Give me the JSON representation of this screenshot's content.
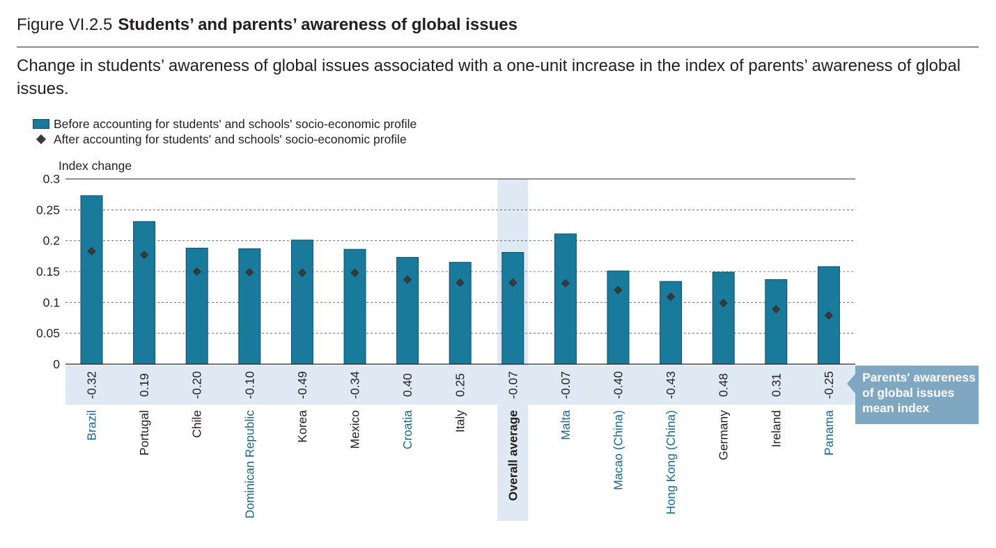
{
  "header": {
    "figure_number": "Figure VI.2.5",
    "figure_title": "Students’ and parents’ awareness of global issues",
    "subtitle": "Change in students’ awareness of global issues associated with a one-unit increase in the index of parents’ awareness of global issues."
  },
  "legend": {
    "bar_label": "Before accounting for students' and schools' socio-economic profile",
    "marker_label": "After accounting for students' and schools' socio-economic profile"
  },
  "callout": {
    "line1": "Parents' awareness",
    "line2": "of global issues",
    "line3": "mean index"
  },
  "colors": {
    "bar": "#1a7a9c",
    "bar_edge": "#0f4c62",
    "marker": "#3a3a3a",
    "band": "#dfe9f4",
    "highlight_label": "#1a6a8c",
    "callout": "#7fa7c1"
  },
  "chart_data": {
    "type": "bar",
    "ylabel": "Index change",
    "ylim": [
      0,
      0.3
    ],
    "yticks": [
      {
        "value": 0,
        "label": "0"
      },
      {
        "value": 0.05,
        "label": "0.05"
      },
      {
        "value": 0.1,
        "label": "0.1"
      },
      {
        "value": 0.15,
        "label": "0.15"
      },
      {
        "value": 0.2,
        "label": "0.2"
      },
      {
        "value": 0.25,
        "label": "0.25"
      },
      {
        "value": 0.3,
        "label": "0.3"
      }
    ],
    "grid": "dashed-horizontal",
    "categories": [
      "Brazil",
      "Portugal",
      "Chile",
      "Dominican Republic",
      "Korea",
      "Mexico",
      "Croatia",
      "Italy",
      "Overall average",
      "Malta",
      "Macao (China)",
      "Hong Kong (China)",
      "Germany",
      "Ireland",
      "Panama"
    ],
    "highlighted_categories": [
      "Brazil",
      "Dominican Republic",
      "Croatia",
      "Malta",
      "Macao (China)",
      "Hong Kong (China)",
      "Panama"
    ],
    "average_category": "Overall average",
    "series": [
      {
        "name": "Before accounting for students' and schools' socio-economic profile",
        "kind": "bar",
        "values": [
          0.273,
          0.231,
          0.188,
          0.187,
          0.201,
          0.186,
          0.173,
          0.165,
          0.181,
          0.211,
          0.151,
          0.134,
          0.149,
          0.137,
          0.158
        ]
      },
      {
        "name": "After accounting for students' and schools' socio-economic profile",
        "kind": "marker",
        "values": [
          0.183,
          0.177,
          0.15,
          0.149,
          0.148,
          0.148,
          0.137,
          0.132,
          0.132,
          0.131,
          0.12,
          0.109,
          0.099,
          0.089,
          0.079
        ]
      }
    ],
    "mean_index_labels": [
      "-0.32",
      "0.19",
      "-0.20",
      "-0.10",
      "-0.49",
      "-0.34",
      "0.40",
      "0.25",
      "-0.07",
      "-0.07",
      "-0.40",
      "-0.43",
      "0.48",
      "0.31",
      "-0.25"
    ]
  }
}
